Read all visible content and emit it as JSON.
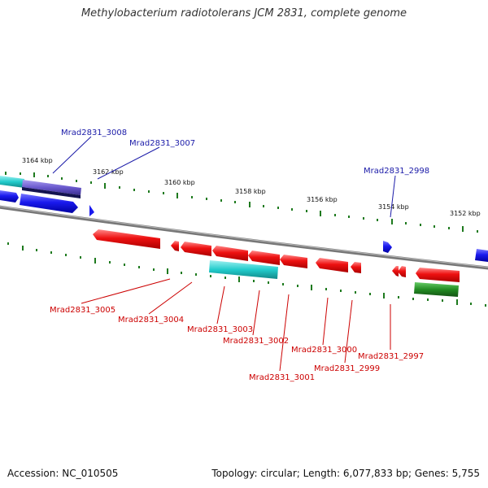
{
  "title": "Methylobacterium radiotolerans JCM 2831, complete genome",
  "accession": "Accession: NC_010505",
  "topology": "Topology: circular; Length: 6,077,833 bp; Genes: 5,755",
  "scale_labels": [
    "3164 kbp",
    "3162 kbp",
    "3160 kbp",
    "3158 kbp",
    "3156 kbp",
    "3154 kbp",
    "3152 kbp"
  ],
  "genes_top": [
    "Mrad2831_3008",
    "Mrad2831_3007",
    "Mrad2831_2998"
  ],
  "genes_bottom": [
    "Mrad2831_3005",
    "Mrad2831_3004",
    "Mrad2831_3003",
    "Mrad2831_3002",
    "Mrad2831_3001",
    "Mrad2831_3000",
    "Mrad2831_2999",
    "Mrad2831_2997"
  ],
  "colors": {
    "forward": "#1a1aee",
    "reverse": "#ee1111",
    "rna_cyan": "#22cccc",
    "purple": "#6a5acd",
    "green": "#228b22",
    "backbone": "#888888",
    "tick": "#1e7a1e"
  }
}
